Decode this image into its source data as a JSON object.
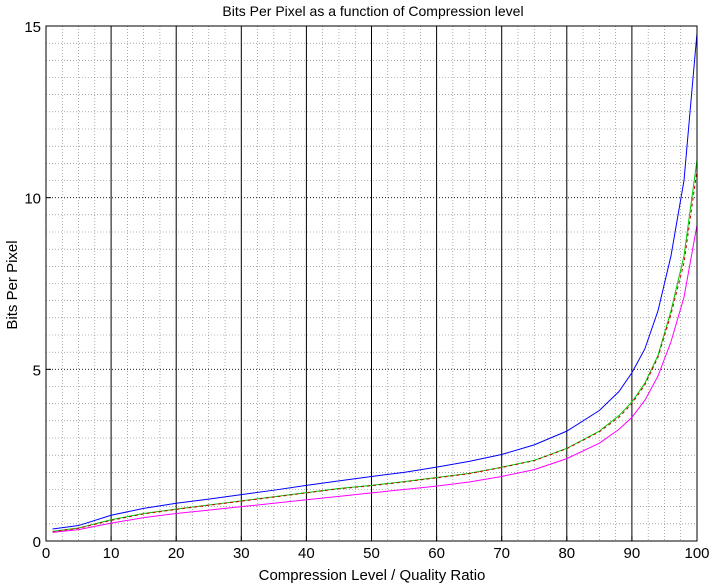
{
  "chart_data": {
    "type": "line",
    "title": "Bits Per Pixel as a function of Compression level",
    "xlabel": "Compression Level / Quality Ratio",
    "ylabel": "Bits Per Pixel",
    "xlim": [
      0,
      100
    ],
    "ylim": [
      0,
      15
    ],
    "xticks": [
      "0",
      "10",
      "20",
      "30",
      "40",
      "50",
      "60",
      "70",
      "80",
      "90",
      "100"
    ],
    "yticks": [
      "0",
      "5",
      "10",
      "15"
    ],
    "grid": true,
    "x": [
      1,
      5,
      10,
      15,
      20,
      25,
      30,
      35,
      40,
      45,
      50,
      55,
      60,
      65,
      70,
      75,
      80,
      85,
      88,
      90,
      92,
      94,
      96,
      98,
      100
    ],
    "series": [
      {
        "color": "#0000ff",
        "values": [
          0.35,
          0.45,
          0.75,
          0.95,
          1.1,
          1.22,
          1.35,
          1.48,
          1.62,
          1.75,
          1.88,
          2.0,
          2.15,
          2.32,
          2.52,
          2.8,
          3.2,
          3.8,
          4.35,
          4.9,
          5.6,
          6.7,
          8.3,
          10.5,
          14.8
        ]
      },
      {
        "color": "#00cc00",
        "values": [
          0.28,
          0.38,
          0.62,
          0.8,
          0.93,
          1.05,
          1.17,
          1.29,
          1.41,
          1.53,
          1.62,
          1.73,
          1.85,
          1.97,
          2.15,
          2.35,
          2.7,
          3.2,
          3.65,
          4.05,
          4.6,
          5.4,
          6.7,
          8.3,
          11.1
        ]
      },
      {
        "color": "#cc0000",
        "dashed": true,
        "values": [
          0.27,
          0.37,
          0.6,
          0.79,
          0.92,
          1.04,
          1.16,
          1.28,
          1.4,
          1.52,
          1.61,
          1.72,
          1.84,
          1.96,
          2.14,
          2.34,
          2.69,
          3.18,
          3.6,
          4.0,
          4.55,
          5.35,
          6.6,
          8.1,
          10.8
        ]
      },
      {
        "color": "#ff00ff",
        "values": [
          0.25,
          0.33,
          0.52,
          0.68,
          0.8,
          0.9,
          1.0,
          1.1,
          1.2,
          1.3,
          1.4,
          1.5,
          1.6,
          1.72,
          1.88,
          2.08,
          2.4,
          2.85,
          3.25,
          3.6,
          4.1,
          4.8,
          5.8,
          7.1,
          9.2
        ]
      }
    ]
  }
}
